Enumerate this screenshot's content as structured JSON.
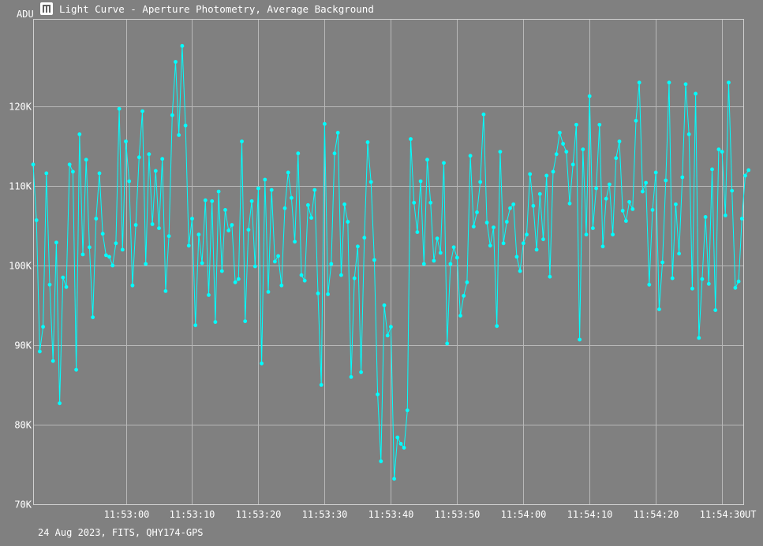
{
  "window": {
    "title": "Light Curve - Aperture Photometry, Average Background",
    "icon": "light-curve-app-icon"
  },
  "footer": {
    "caption": "24 Aug 2023, FITS, QHY174-GPS"
  },
  "colors": {
    "background": "#808080",
    "series": "#00ffff",
    "grid": "#b8b8b8",
    "text": "#ffffff"
  },
  "chart_data": {
    "type": "line",
    "title": "Light Curve - Aperture Photometry, Average Background",
    "xlabel": "UT",
    "ylabel": "ADU",
    "grid": true,
    "x_unit": "seconds since 11:52:50 UT",
    "xlim": [
      -4.0,
      103.2
    ],
    "ylim": [
      70000,
      131000
    ],
    "y_ticks": [
      {
        "value": 70000,
        "label": "70K"
      },
      {
        "value": 80000,
        "label": "80K"
      },
      {
        "value": 90000,
        "label": "90K"
      },
      {
        "value": 100000,
        "label": "100K"
      },
      {
        "value": 110000,
        "label": "110K"
      },
      {
        "value": 120000,
        "label": "120K"
      }
    ],
    "x_ticks": [
      {
        "value": 10,
        "label": "11:53:00"
      },
      {
        "value": 20,
        "label": "11:53:10"
      },
      {
        "value": 30,
        "label": "11:53:20"
      },
      {
        "value": 40,
        "label": "11:53:30"
      },
      {
        "value": 50,
        "label": "11:53:40"
      },
      {
        "value": 60,
        "label": "11:53:50"
      },
      {
        "value": 70,
        "label": "11:54:00"
      },
      {
        "value": 80,
        "label": "11:54:10"
      },
      {
        "value": 90,
        "label": "11:54:20"
      },
      {
        "value": 100,
        "label": "11:54:30"
      }
    ],
    "series": [
      {
        "name": "",
        "color": "#00ffff",
        "start_x": -4.0,
        "step_x": 0.5,
        "values": [
          112700,
          105700,
          89200,
          92300,
          111600,
          97600,
          88000,
          102900,
          82700,
          98500,
          97300,
          112700,
          111800,
          86900,
          116500,
          101400,
          113300,
          102300,
          93500,
          105900,
          111600,
          104000,
          101300,
          101100,
          100000,
          102800,
          119700,
          102000,
          115600,
          110600,
          97500,
          105100,
          113600,
          119400,
          100200,
          114000,
          105200,
          111900,
          104700,
          113400,
          96800,
          103700,
          118900,
          125600,
          116400,
          127600,
          117600,
          102500,
          105900,
          92500,
          103900,
          100300,
          108200,
          96300,
          108100,
          92900,
          109300,
          99300,
          107000,
          104400,
          105100,
          97900,
          98300,
          115600,
          93000,
          104500,
          108100,
          99900,
          109700,
          87700,
          110800,
          96700,
          109500,
          100500,
          101200,
          97500,
          107200,
          111700,
          108500,
          103000,
          114100,
          98800,
          98100,
          107600,
          106000,
          109500,
          96500,
          85000,
          117800,
          96400,
          100200,
          114100,
          116700,
          98800,
          107700,
          105500,
          86000,
          98400,
          102400,
          86600,
          103500,
          115500,
          110500,
          100700,
          83800,
          75400,
          95000,
          91200,
          92300,
          73200,
          78400,
          77600,
          77100,
          81800,
          115900,
          107900,
          104200,
          110600,
          100200,
          113300,
          107900,
          100600,
          103400,
          101600,
          112900,
          90200,
          100200,
          102300,
          101000,
          93700,
          96200,
          97900,
          113800,
          104900,
          106700,
          110500,
          119000,
          105400,
          102500,
          104800,
          92400,
          114300,
          102800,
          105500,
          107200,
          107700,
          101100,
          99300,
          102800,
          103900,
          111500,
          107500,
          102000,
          109000,
          103300,
          111300,
          98600,
          111800,
          114000,
          116700,
          115300,
          114300,
          107800,
          112700,
          117700,
          90700,
          114600,
          103900,
          121300,
          104700,
          109700,
          117700,
          102400,
          108400,
          110200,
          103900,
          113500,
          115600,
          106900,
          105600,
          108000,
          107100,
          118200,
          123000,
          109300,
          110400,
          97600,
          107000,
          111700,
          94500,
          100400,
          110700,
          123000,
          98400,
          107700,
          101500,
          111100,
          122800,
          116500,
          97100,
          121600,
          90900,
          98300,
          106100,
          97700,
          112100,
          94400,
          114600,
          114300,
          106300,
          123000,
          109400,
          97200,
          98000,
          105900,
          111300,
          112000
        ]
      }
    ]
  }
}
